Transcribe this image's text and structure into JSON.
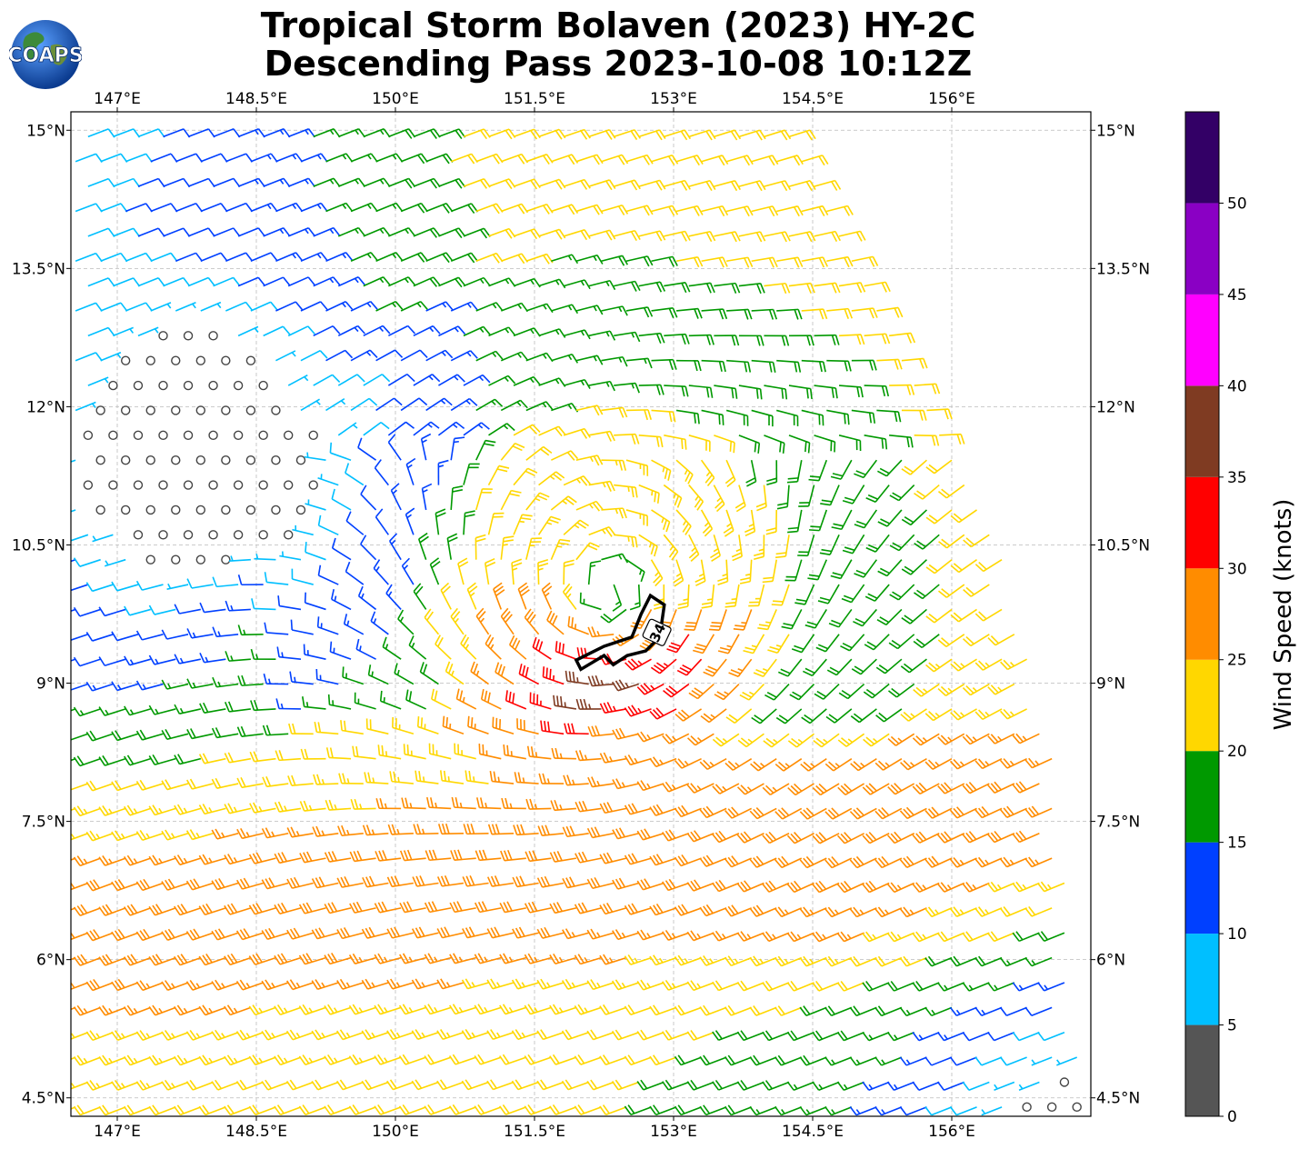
{
  "title": {
    "line1": "Tropical Storm Bolaven (2023) HY-2C",
    "line2": "Descending Pass 2023-10-08 10:12Z"
  },
  "logo": {
    "text": "COAPS",
    "icon": "globe-logo"
  },
  "map": {
    "lon_range": [
      146.5,
      157.5
    ],
    "lat_range": [
      4.3,
      15.2
    ],
    "lon_ticks": [
      "147°E",
      "148.5°E",
      "150°E",
      "151.5°E",
      "153°E",
      "154.5°E",
      "156°E"
    ],
    "lon_values": [
      147,
      148.5,
      150,
      151.5,
      153,
      154.5,
      156
    ],
    "lat_ticks": [
      "15°N",
      "13.5°N",
      "12°N",
      "10.5°N",
      "9°N",
      "7.5°N",
      "6°N",
      "4.5°N"
    ],
    "lat_values": [
      15,
      13.5,
      12,
      10.5,
      9,
      7.5,
      6,
      4.5
    ],
    "storm_center": {
      "lon": 152.3,
      "lat": 10.05
    },
    "calm_center": {
      "lon": 147.8,
      "lat": 11.45
    },
    "contour_label": "34",
    "gridlines": true
  },
  "colorbar": {
    "label": "Wind Speed (knots)",
    "ticks": [
      "0",
      "5",
      "10",
      "15",
      "20",
      "25",
      "30",
      "35",
      "40",
      "45",
      "50"
    ],
    "colors": [
      "#555555",
      "#00bfff",
      "#0040ff",
      "#009900",
      "#ffd700",
      "#ff8c00",
      "#ff0000",
      "#7f3b22",
      "#ff00ff",
      "#8a00c4",
      "#330066"
    ]
  }
}
